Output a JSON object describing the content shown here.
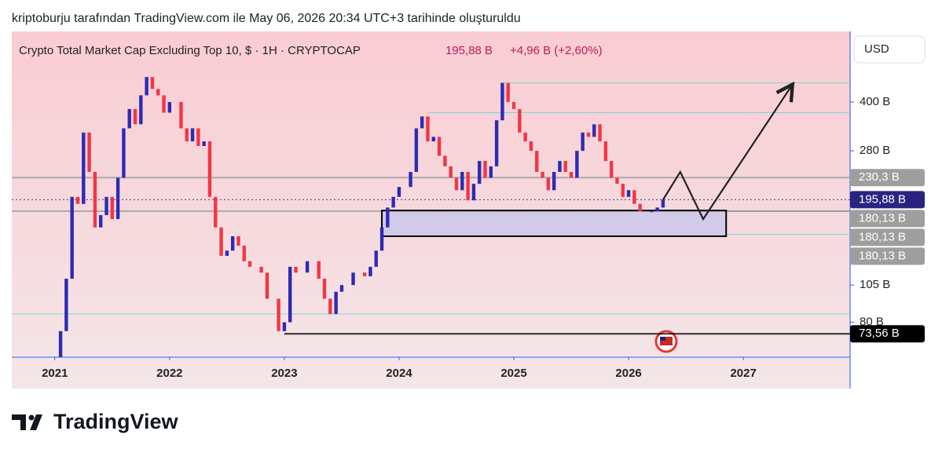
{
  "header": {
    "credit": "kriptoburju tarafından TradingView.com ile May 06, 2026 20:34 UTC+3 tarihinde oluşturuldu"
  },
  "footer": {
    "brand": "TradingView"
  },
  "chart_data": {
    "type": "candlestick",
    "title": "Crypto Total Market Cap Excluding Top 10, $ · 1H · CRYPTOCAP",
    "price": "195,88 B",
    "change": "+4,96 B (+2,60%)",
    "currency": "USD",
    "x": [
      2021.0,
      2021.05,
      2021.1,
      2021.15,
      2021.2,
      2021.25,
      2021.3,
      2021.35,
      2021.4,
      2021.45,
      2021.5,
      2021.55,
      2021.6,
      2021.65,
      2021.7,
      2021.75,
      2021.8,
      2021.85,
      2021.9,
      2021.95,
      2022.0,
      2022.1,
      2022.15,
      2022.2,
      2022.25,
      2022.3,
      2022.35,
      2022.4,
      2022.45,
      2022.5,
      2022.55,
      2022.6,
      2022.65,
      2022.7,
      2022.8,
      2022.85,
      2022.95,
      2023.0,
      2023.05,
      2023.1,
      2023.2,
      2023.3,
      2023.35,
      2023.4,
      2023.45,
      2023.5,
      2023.6,
      2023.7,
      2023.75,
      2023.8,
      2023.85,
      2023.9,
      2023.95,
      2024.0,
      2024.1,
      2024.15,
      2024.2,
      2024.25,
      2024.3,
      2024.35,
      2024.4,
      2024.45,
      2024.5,
      2024.55,
      2024.6,
      2024.65,
      2024.7,
      2024.75,
      2024.8,
      2024.85,
      2024.9,
      2024.95,
      2025.0,
      2025.05,
      2025.1,
      2025.15,
      2025.2,
      2025.25,
      2025.3,
      2025.35,
      2025.4,
      2025.45,
      2025.5,
      2025.55,
      2025.6,
      2025.65,
      2025.7,
      2025.75,
      2025.8,
      2025.85,
      2025.9,
      2025.95,
      2026.0,
      2026.05,
      2026.1,
      2026.2,
      2026.25,
      2026.3
    ],
    "values": [
      62,
      75,
      110,
      200,
      190,
      320,
      240,
      160,
      175,
      200,
      170,
      230,
      330,
      380,
      340,
      420,
      480,
      440,
      420,
      370,
      400,
      330,
      300,
      330,
      290,
      300,
      200,
      160,
      130,
      135,
      150,
      140,
      125,
      120,
      115,
      95,
      75,
      80,
      120,
      115,
      125,
      110,
      95,
      85,
      100,
      105,
      115,
      112,
      120,
      135,
      160,
      185,
      200,
      215,
      240,
      330,
      360,
      300,
      310,
      270,
      250,
      230,
      210,
      240,
      195,
      220,
      260,
      230,
      250,
      350,
      460,
      400,
      380,
      320,
      300,
      280,
      240,
      230,
      210,
      240,
      260,
      240,
      230,
      280,
      320,
      310,
      340,
      300,
      260,
      230,
      220,
      200,
      210,
      190,
      180,
      180,
      185,
      195.88
    ],
    "up_color": "#2e2ab4",
    "down_color": "#f23645",
    "xlim": [
      2020.625,
      2027.93
    ],
    "ylim": [
      62,
      670
    ],
    "log": true,
    "xticks": [
      2021,
      2022,
      2023,
      2024,
      2025,
      2026,
      2027
    ],
    "yticks": [
      {
        "value": 400,
        "label": "400 B"
      },
      {
        "value": 280,
        "label": "280 B"
      },
      {
        "value": 105,
        "label": "105 B"
      },
      {
        "value": 80,
        "label": "80 B"
      }
    ],
    "levels": [
      {
        "value": 230.3,
        "label": "230,3 B",
        "color": "#9e9e9e",
        "start": 2020.625
      },
      {
        "value": 195.88,
        "label": "195,88 B",
        "color": "#2a2480",
        "start": 2020.625,
        "dotted": true
      },
      {
        "value": 180.13,
        "label": "180,13 B",
        "color": "#9e9e9e",
        "start": 2020.625
      },
      {
        "value": 180.13,
        "label": "180,13 B",
        "color": "#9e9e9e",
        "start": 2026.85
      },
      {
        "value": 180.13,
        "label": "180,13 B",
        "color": "#9e9e9e",
        "start": 2026.85
      },
      {
        "value": 73.56,
        "label": "73,56 B",
        "color": "#000000",
        "start": 2023.0
      }
    ],
    "guides": [
      {
        "value": 460,
        "start": 2024.9
      },
      {
        "value": 370,
        "start": 2024.25
      },
      {
        "value": 152,
        "start": 2026.85
      },
      {
        "value": 85,
        "start": 2020.625
      }
    ],
    "range_box": {
      "x": [
        2023.85,
        2026.85
      ],
      "y": [
        150,
        181
      ]
    },
    "projection": {
      "x": [
        2026.3,
        2026.45,
        2026.65,
        2027.42
      ],
      "values": [
        195.88,
        240,
        170,
        450
      ]
    }
  }
}
